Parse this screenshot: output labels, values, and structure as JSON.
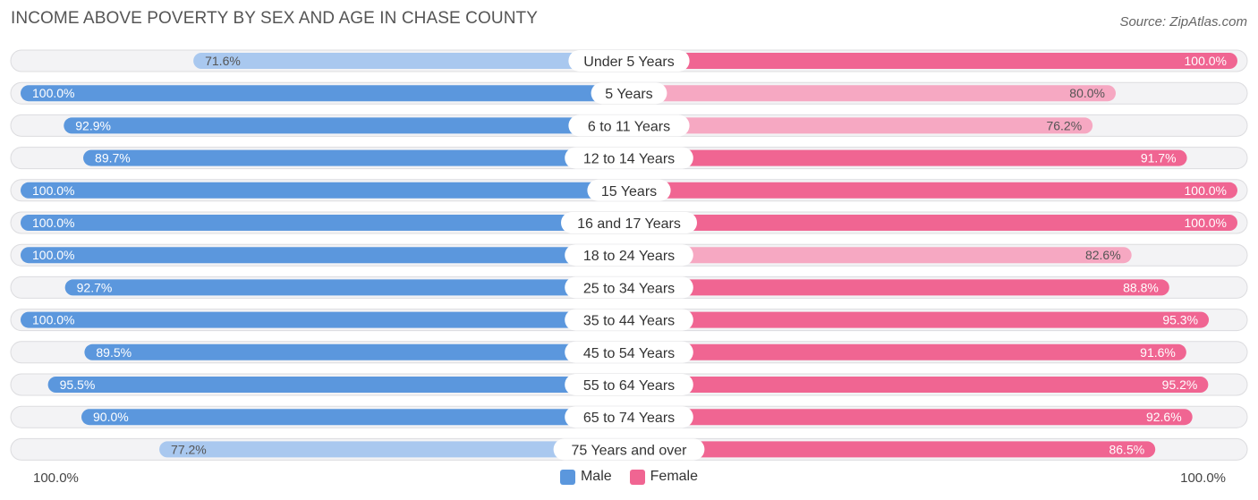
{
  "title": "INCOME ABOVE POVERTY BY SEX AND AGE IN CHASE COUNTY",
  "source": "Source: ZipAtlas.com",
  "axis": {
    "left_label": "100.0%",
    "right_label": "100.0%"
  },
  "colors": {
    "male_strong": "#5b97dd",
    "male_light": "#a9c8ef",
    "female_strong": "#f06592",
    "female_light": "#f6a8c2"
  },
  "chart_data": {
    "type": "bar",
    "orientation": "horizontal-diverging",
    "title": "INCOME ABOVE POVERTY BY SEX AND AGE IN CHASE COUNTY",
    "categories": [
      "Under 5 Years",
      "5 Years",
      "6 to 11 Years",
      "12 to 14 Years",
      "15 Years",
      "16 and 17 Years",
      "18 to 24 Years",
      "25 to 34 Years",
      "35 to 44 Years",
      "45 to 54 Years",
      "55 to 64 Years",
      "65 to 74 Years",
      "75 Years and over"
    ],
    "series": [
      {
        "name": "Male",
        "values": [
          71.6,
          100.0,
          92.9,
          89.7,
          100.0,
          100.0,
          100.0,
          92.7,
          100.0,
          89.5,
          95.5,
          90.0,
          77.2
        ],
        "labels": [
          "71.6%",
          "100.0%",
          "92.9%",
          "89.7%",
          "100.0%",
          "100.0%",
          "100.0%",
          "92.7%",
          "100.0%",
          "89.5%",
          "95.5%",
          "90.0%",
          "77.2%"
        ]
      },
      {
        "name": "Female",
        "values": [
          100.0,
          80.0,
          76.2,
          91.7,
          100.0,
          100.0,
          82.6,
          88.8,
          95.3,
          91.6,
          95.2,
          92.6,
          86.5
        ],
        "labels": [
          "100.0%",
          "80.0%",
          "76.2%",
          "91.7%",
          "100.0%",
          "100.0%",
          "82.6%",
          "88.8%",
          "95.3%",
          "91.6%",
          "95.2%",
          "92.6%",
          "86.5%"
        ]
      }
    ],
    "xlim": [
      0,
      100
    ],
    "legend": [
      "Male",
      "Female"
    ],
    "legend_position": "bottom-center"
  }
}
